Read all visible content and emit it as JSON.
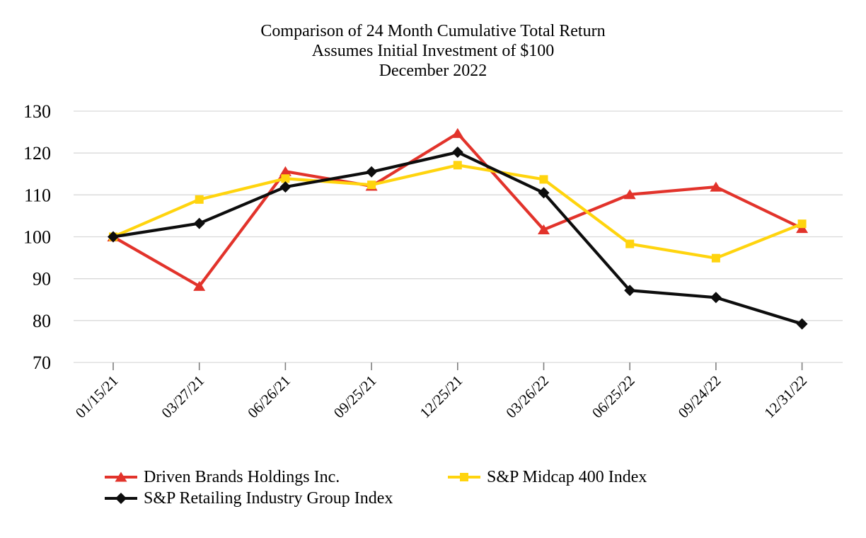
{
  "title": {
    "line1": "Comparison of 24 Month Cumulative Total Return",
    "line2": "Assumes Initial Investment of $100",
    "line3": "December 2022"
  },
  "chart_data": {
    "type": "line",
    "categories": [
      "01/15/21",
      "03/27/21",
      "06/26/21",
      "09/25/21",
      "12/25/21",
      "03/26/22",
      "06/25/22",
      "09/24/22",
      "12/31/22"
    ],
    "series": [
      {
        "name": "Driven Brands Holdings Inc.",
        "marker": "triangle",
        "color": "#E2332B",
        "values": [
          100.0,
          88.2,
          115.6,
          112.1,
          124.7,
          101.7,
          110.1,
          111.9,
          102.0
        ]
      },
      {
        "name": "S&P Midcap 400 Index",
        "marker": "square",
        "color": "#FFD40E",
        "values": [
          100.0,
          108.9,
          113.9,
          112.4,
          117.1,
          113.7,
          98.3,
          94.9,
          103.1
        ]
      },
      {
        "name": "S&P Retailing Industry Group Index",
        "marker": "diamond",
        "color": "#0D0D0D",
        "values": [
          100.0,
          103.2,
          111.9,
          115.5,
          120.2,
          110.5,
          87.2,
          85.5,
          79.2
        ]
      }
    ],
    "ylim": [
      70,
      130
    ],
    "ytick_step": 10,
    "yticks": [
      70,
      80,
      90,
      100,
      110,
      120,
      130
    ],
    "grid": "horizontal",
    "legend_position": "bottom",
    "axis_color": "#D9D9D9",
    "tick_color": "#7F7F7F",
    "text_color": "#000000"
  }
}
